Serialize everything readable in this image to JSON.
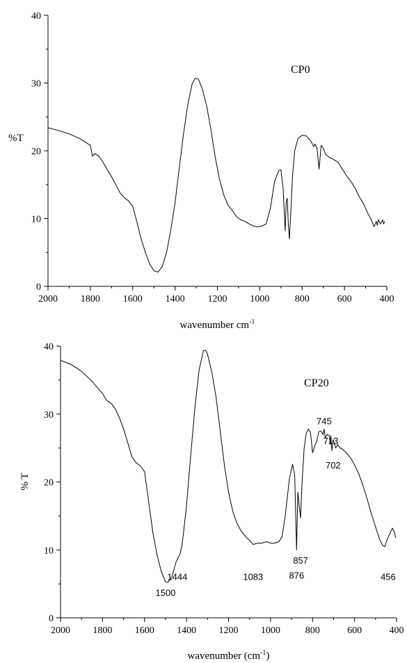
{
  "chart_data": [
    {
      "type": "line",
      "title": "CP0",
      "xlabel": "wavenumber cm",
      "xlabel_sup": "-1",
      "ylabel": "%T",
      "xlim": [
        2000,
        400
      ],
      "ylim": [
        0,
        40
      ],
      "x_ticks": [
        "2000",
        "1800",
        "1600",
        "1400",
        "1200",
        "1000",
        "800",
        "600",
        "400"
      ],
      "y_ticks": [
        "0",
        "10",
        "20",
        "30",
        "40"
      ],
      "x_tick_values": [
        2000,
        1800,
        1600,
        1400,
        1200,
        1000,
        800,
        600,
        400
      ],
      "y_tick_values": [
        0,
        10,
        20,
        30,
        40
      ],
      "series": [
        {
          "points": [
            [
              2000,
              23.4
            ],
            [
              1950,
              23.0
            ],
            [
              1900,
              22.5
            ],
            [
              1850,
              21.8
            ],
            [
              1800,
              20.8
            ],
            [
              1790,
              19.2
            ],
            [
              1780,
              19.6
            ],
            [
              1760,
              19.2
            ],
            [
              1740,
              18.3
            ],
            [
              1720,
              17.2
            ],
            [
              1700,
              16.2
            ],
            [
              1680,
              15.0
            ],
            [
              1660,
              13.8
            ],
            [
              1640,
              13.1
            ],
            [
              1620,
              12.6
            ],
            [
              1600,
              11.8
            ],
            [
              1580,
              9.5
            ],
            [
              1560,
              7.0
            ],
            [
              1540,
              5.0
            ],
            [
              1520,
              3.3
            ],
            [
              1500,
              2.3
            ],
            [
              1480,
              2.1
            ],
            [
              1460,
              3.0
            ],
            [
              1440,
              5.0
            ],
            [
              1420,
              8.3
            ],
            [
              1400,
              12.3
            ],
            [
              1380,
              17.5
            ],
            [
              1360,
              22.5
            ],
            [
              1340,
              26.8
            ],
            [
              1320,
              29.8
            ],
            [
              1305,
              30.7
            ],
            [
              1290,
              30.6
            ],
            [
              1270,
              29.0
            ],
            [
              1250,
              26.5
            ],
            [
              1230,
              23.0
            ],
            [
              1210,
              19.0
            ],
            [
              1190,
              15.8
            ],
            [
              1170,
              13.5
            ],
            [
              1150,
              12.0
            ],
            [
              1130,
              11.2
            ],
            [
              1110,
              10.3
            ],
            [
              1090,
              9.8
            ],
            [
              1070,
              9.6
            ],
            [
              1050,
              9.2
            ],
            [
              1030,
              8.9
            ],
            [
              1010,
              8.8
            ],
            [
              990,
              8.9
            ],
            [
              970,
              9.2
            ],
            [
              950,
              11.5
            ],
            [
              930,
              15.5
            ],
            [
              910,
              17.1
            ],
            [
              900,
              17.2
            ],
            [
              890,
              14.5
            ],
            [
              880,
              8.2
            ],
            [
              875,
              12.5
            ],
            [
              870,
              13.0
            ],
            [
              865,
              9.0
            ],
            [
              860,
              7.0
            ],
            [
              855,
              10.0
            ],
            [
              845,
              16.5
            ],
            [
              835,
              20.0
            ],
            [
              820,
              21.8
            ],
            [
              800,
              22.3
            ],
            [
              780,
              22.2
            ],
            [
              760,
              21.5
            ],
            [
              745,
              20.6
            ],
            [
              740,
              21.0
            ],
            [
              730,
              20.4
            ],
            [
              720,
              17.3
            ],
            [
              715,
              19.0
            ],
            [
              710,
              20.8
            ],
            [
              700,
              20.4
            ],
            [
              690,
              19.5
            ],
            [
              670,
              19.0
            ],
            [
              650,
              18.7
            ],
            [
              630,
              18.3
            ],
            [
              610,
              17.3
            ],
            [
              590,
              16.3
            ],
            [
              570,
              15.5
            ],
            [
              550,
              14.5
            ],
            [
              530,
              13.2
            ],
            [
              510,
              12.2
            ],
            [
              490,
              10.8
            ],
            [
              470,
              9.6
            ],
            [
              460,
              8.8
            ],
            [
              450,
              9.6
            ],
            [
              445,
              9.0
            ],
            [
              440,
              9.8
            ],
            [
              430,
              9.2
            ],
            [
              420,
              9.8
            ],
            [
              415,
              9.2
            ],
            [
              410,
              9.6
            ]
          ]
        }
      ]
    },
    {
      "type": "line",
      "title": "CP20",
      "xlabel": "wavenumber (cm",
      "xlabel_sup": "-1",
      "xlabel_tail": ")",
      "ylabel": "% T",
      "xlim": [
        2000,
        400
      ],
      "ylim": [
        0,
        40
      ],
      "x_ticks": [
        "2000",
        "1800",
        "1600",
        "1400",
        "1200",
        "1000",
        "800",
        "600",
        "400"
      ],
      "y_ticks": [
        "0",
        "10",
        "20",
        "30",
        "40"
      ],
      "x_tick_values": [
        2000,
        1800,
        1600,
        1400,
        1200,
        1000,
        800,
        600,
        400
      ],
      "y_tick_values": [
        0,
        10,
        20,
        30,
        40
      ],
      "annotations": [
        {
          "text": "1500",
          "x": 1500,
          "y": 3.2
        },
        {
          "text": "1444",
          "x": 1444,
          "y": 5.6
        },
        {
          "text": "1083",
          "x": 1083,
          "y": 5.6
        },
        {
          "text": "876",
          "x": 876,
          "y": 5.8
        },
        {
          "text": "857",
          "x": 857,
          "y": 8.0
        },
        {
          "text": "745",
          "x": 745,
          "y": 28.5
        },
        {
          "text": "713",
          "x": 713,
          "y": 25.6
        },
        {
          "text": "702",
          "x": 702,
          "y": 22.0
        },
        {
          "text": "456",
          "x": 440,
          "y": 5.6
        }
      ],
      "series": [
        {
          "points": [
            [
              2000,
              37.9
            ],
            [
              1950,
              37.3
            ],
            [
              1900,
              36.3
            ],
            [
              1850,
              34.8
            ],
            [
              1800,
              33.0
            ],
            [
              1780,
              32.0
            ],
            [
              1760,
              31.6
            ],
            [
              1740,
              30.8
            ],
            [
              1720,
              29.5
            ],
            [
              1700,
              27.8
            ],
            [
              1680,
              25.8
            ],
            [
              1660,
              23.7
            ],
            [
              1640,
              22.8
            ],
            [
              1620,
              22.4
            ],
            [
              1600,
              21.5
            ],
            [
              1580,
              17.0
            ],
            [
              1560,
              12.5
            ],
            [
              1540,
              9.2
            ],
            [
              1520,
              6.8
            ],
            [
              1500,
              5.3
            ],
            [
              1490,
              5.2
            ],
            [
              1470,
              6.0
            ],
            [
              1450,
              8.2
            ],
            [
              1430,
              9.5
            ],
            [
              1420,
              11.0
            ],
            [
              1400,
              16.5
            ],
            [
              1380,
              24.0
            ],
            [
              1360,
              31.0
            ],
            [
              1340,
              36.5
            ],
            [
              1320,
              39.3
            ],
            [
              1310,
              39.4
            ],
            [
              1300,
              38.8
            ],
            [
              1280,
              36.2
            ],
            [
              1260,
              32.6
            ],
            [
              1240,
              27.6
            ],
            [
              1220,
              22.5
            ],
            [
              1200,
              18.5
            ],
            [
              1180,
              15.7
            ],
            [
              1160,
              13.9
            ],
            [
              1140,
              12.8
            ],
            [
              1120,
              12.0
            ],
            [
              1100,
              11.4
            ],
            [
              1083,
              10.8
            ],
            [
              1060,
              11.0
            ],
            [
              1040,
              11.0
            ],
            [
              1020,
              11.2
            ],
            [
              1000,
              11.0
            ],
            [
              980,
              11.0
            ],
            [
              960,
              11.2
            ],
            [
              945,
              12.0
            ],
            [
              930,
              15.0
            ],
            [
              910,
              20.5
            ],
            [
              895,
              22.6
            ],
            [
              885,
              21.0
            ],
            [
              876,
              10.0
            ],
            [
              870,
              18.5
            ],
            [
              865,
              17.0
            ],
            [
              857,
              14.7
            ],
            [
              850,
              20.0
            ],
            [
              840,
              25.0
            ],
            [
              830,
              27.2
            ],
            [
              820,
              27.8
            ],
            [
              810,
              27.3
            ],
            [
              800,
              24.3
            ],
            [
              790,
              25.3
            ],
            [
              780,
              26.0
            ],
            [
              770,
              27.4
            ],
            [
              760,
              27.5
            ],
            [
              750,
              27.0
            ],
            [
              745,
              27.8
            ],
            [
              740,
              26.5
            ],
            [
              730,
              27.0
            ],
            [
              720,
              26.8
            ],
            [
              716,
              25.5
            ],
            [
              713,
              26.8
            ],
            [
              708,
              24.6
            ],
            [
              702,
              26.2
            ],
            [
              690,
              25.0
            ],
            [
              680,
              25.5
            ],
            [
              670,
              25.0
            ],
            [
              660,
              24.9
            ],
            [
              640,
              24.3
            ],
            [
              620,
              23.6
            ],
            [
              600,
              22.5
            ],
            [
              580,
              21.2
            ],
            [
              560,
              19.5
            ],
            [
              540,
              17.5
            ],
            [
              520,
              15.3
            ],
            [
              500,
              13.4
            ],
            [
              480,
              11.5
            ],
            [
              465,
              10.6
            ],
            [
              456,
              10.5
            ],
            [
              445,
              11.5
            ],
            [
              430,
              12.5
            ],
            [
              420,
              13.2
            ],
            [
              410,
              12.6
            ],
            [
              405,
              11.8
            ]
          ]
        }
      ]
    }
  ]
}
